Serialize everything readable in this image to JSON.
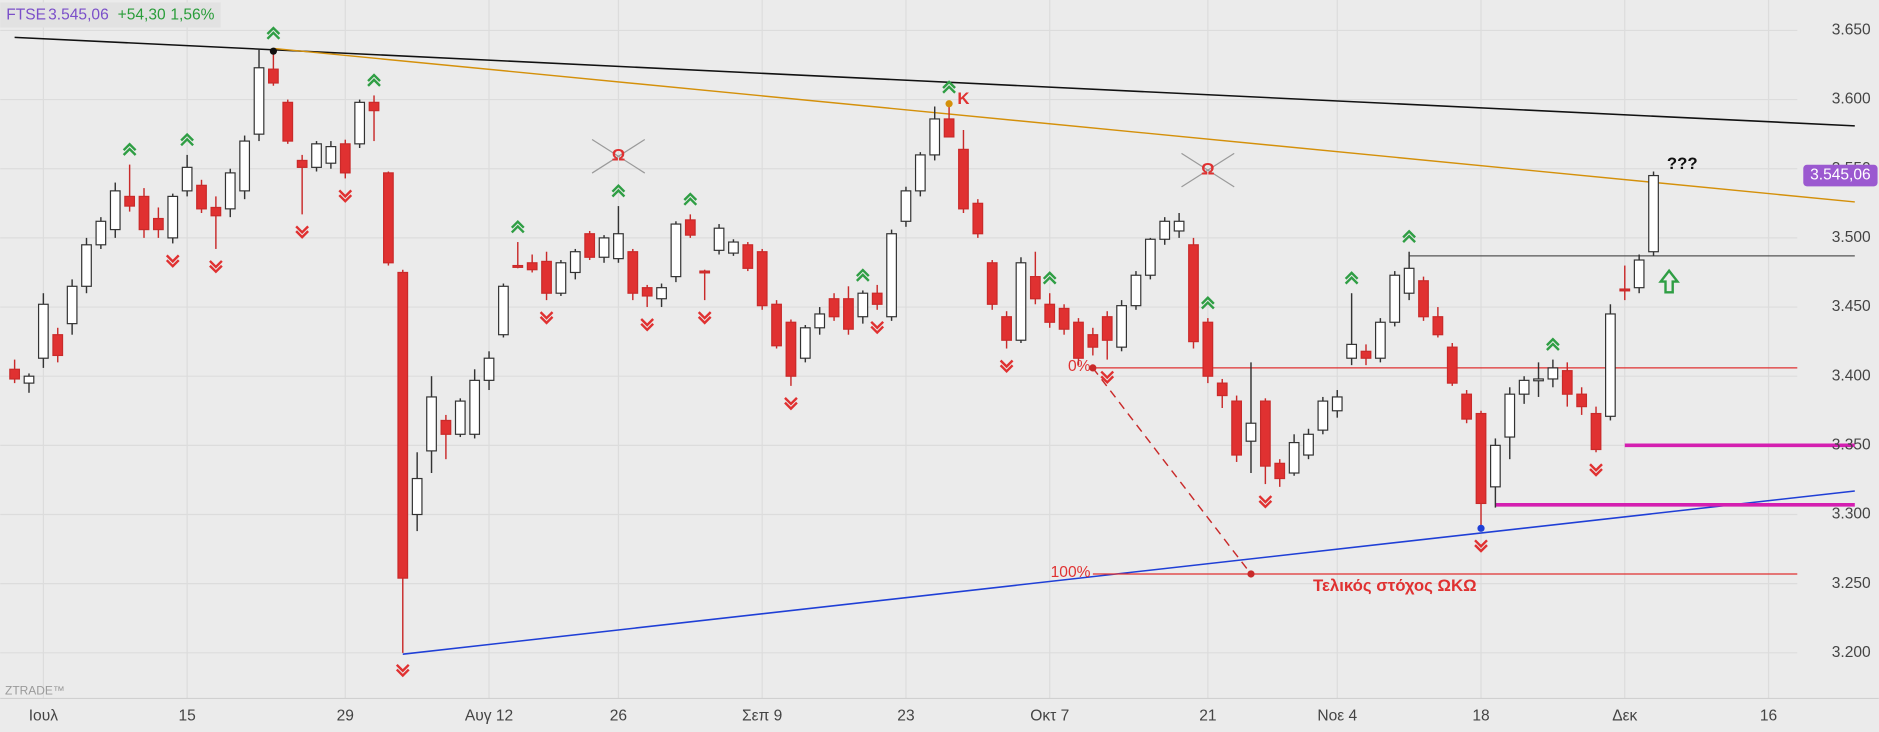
{
  "chart_data": {
    "type": "candlestick",
    "header": {
      "symbol": "FTSE",
      "price": "3.545,06",
      "change": "+54,30",
      "change_pct": "1,56%"
    },
    "watermark": "ZTRADE™",
    "ylim": [
      3167,
      3672
    ],
    "yticks": [
      {
        "value": 3200,
        "label": "3.200"
      },
      {
        "value": 3250,
        "label": "3.250"
      },
      {
        "value": 3300,
        "label": "3.300"
      },
      {
        "value": 3350,
        "label": "3.350"
      },
      {
        "value": 3400,
        "label": "3.400"
      },
      {
        "value": 3450,
        "label": "3.450"
      },
      {
        "value": 3500,
        "label": "3.500"
      },
      {
        "value": 3550,
        "label": "3.550"
      },
      {
        "value": 3600,
        "label": "3.600"
      },
      {
        "value": 3650,
        "label": "3.650"
      }
    ],
    "grid": true,
    "up_color": "#ffffff",
    "down_color": "#e03131",
    "categories": [
      null,
      null,
      "Ιουλ",
      null,
      null,
      null,
      null,
      null,
      null,
      null,
      null,
      null,
      "15",
      null,
      null,
      null,
      null,
      null,
      null,
      null,
      null,
      null,
      null,
      "29",
      null,
      null,
      null,
      null,
      null,
      null,
      null,
      null,
      null,
      "Αυγ 12",
      null,
      null,
      null,
      null,
      null,
      null,
      null,
      null,
      "26",
      null,
      null,
      null,
      null,
      null,
      null,
      null,
      null,
      null,
      "Σεπ 9",
      null,
      null,
      null,
      null,
      null,
      null,
      null,
      null,
      null,
      "23",
      null,
      null,
      null,
      null,
      null,
      null,
      null,
      null,
      null,
      "Οκτ 7",
      null,
      null,
      null,
      null,
      null,
      null,
      null,
      null,
      null,
      null,
      "21",
      null,
      null,
      null,
      null,
      null,
      null,
      null,
      null,
      "Νοε 4",
      null,
      null,
      null,
      null,
      null,
      null,
      null,
      null,
      null,
      "18",
      null,
      null,
      null,
      null,
      null,
      null,
      null,
      null,
      null,
      "Δεκ",
      null,
      null,
      null,
      null,
      null,
      null,
      null,
      null,
      null,
      "16",
      null,
      null,
      null,
      null,
      null
    ],
    "open": [
      3405,
      3395,
      3413,
      3430,
      3438,
      3465,
      3495,
      3506,
      3530,
      3530,
      3514,
      3500,
      3534,
      3538,
      3522,
      3521,
      3534,
      3575,
      3622,
      3598,
      3556,
      3551,
      3554,
      3568,
      3568,
      3598,
      3547,
      3475,
      3300,
      3346,
      3368,
      3358,
      3358,
      3397,
      3430,
      3480,
      3482,
      3483,
      3460,
      3475,
      3503,
      3486,
      3485,
      3490,
      3464,
      3456,
      3472,
      3513,
      3476,
      3491,
      3489,
      3495,
      3490,
      3452,
      3439,
      3413,
      3435,
      3456,
      3456,
      3443,
      3460,
      3443,
      3512,
      3534,
      3560,
      3586,
      3564,
      3525,
      3482,
      3443,
      3426,
      3472,
      3452,
      3449,
      3439,
      3430,
      3443,
      3421,
      3451,
      3473,
      3499,
      3505,
      3495,
      3439,
      3395,
      3382,
      3353,
      3382,
      3337,
      3330,
      3343,
      3361,
      3375,
      3413,
      3418,
      3413,
      3439,
      3460,
      3469,
      3443,
      3421,
      3387,
      3373,
      3320,
      3356,
      3387,
      3397,
      3398,
      3404,
      3387,
      3373,
      3371,
      3463,
      3464,
      3490,
      null,
      null,
      null,
      null,
      null,
      null,
      null,
      null,
      null,
      null,
      null,
      null,
      null
    ],
    "high": [
      3412,
      3402,
      3460,
      3435,
      3470,
      3500,
      3515,
      3540,
      3553,
      3536,
      3522,
      3532,
      3560,
      3542,
      3530,
      3550,
      3574,
      3636,
      3637,
      3600,
      3560,
      3570,
      3570,
      3571,
      3600,
      3603,
      3548,
      3477,
      3345,
      3400,
      3372,
      3384,
      3405,
      3418,
      3467,
      3497,
      3488,
      3490,
      3484,
      3492,
      3505,
      3502,
      3523,
      3492,
      3466,
      3467,
      3512,
      3517,
      3477,
      3510,
      3499,
      3497,
      3492,
      3455,
      3441,
      3437,
      3450,
      3460,
      3465,
      3462,
      3466,
      3506,
      3537,
      3562,
      3595,
      3598,
      3578,
      3528,
      3484,
      3447,
      3486,
      3490,
      3460,
      3452,
      3442,
      3435,
      3447,
      3455,
      3476,
      3500,
      3515,
      3518,
      3500,
      3442,
      3398,
      3386,
      3410,
      3384,
      3340,
      3358,
      3362,
      3385,
      3390,
      3460,
      3423,
      3442,
      3476,
      3490,
      3472,
      3450,
      3424,
      3390,
      3375,
      3355,
      3392,
      3400,
      3410,
      3412,
      3410,
      3392,
      3378,
      3452,
      3480,
      3488,
      3548,
      null,
      null,
      null,
      null,
      null,
      null,
      null,
      null,
      null,
      null,
      null,
      null,
      null
    ],
    "low": [
      3395,
      3388,
      3406,
      3410,
      3430,
      3460,
      3492,
      3500,
      3519,
      3500,
      3500,
      3496,
      3530,
      3518,
      3492,
      3515,
      3528,
      3570,
      3610,
      3568,
      3517,
      3548,
      3550,
      3543,
      3565,
      3570,
      3480,
      3200,
      3288,
      3330,
      3340,
      3356,
      3355,
      3390,
      3428,
      3478,
      3475,
      3455,
      3458,
      3470,
      3484,
      3482,
      3482,
      3455,
      3450,
      3450,
      3468,
      3500,
      3455,
      3488,
      3487,
      3476,
      3448,
      3420,
      3393,
      3410,
      3430,
      3440,
      3430,
      3438,
      3448,
      3440,
      3508,
      3530,
      3556,
      3575,
      3518,
      3500,
      3448,
      3420,
      3424,
      3452,
      3435,
      3430,
      3408,
      3415,
      3412,
      3418,
      3448,
      3470,
      3495,
      3500,
      3420,
      3395,
      3377,
      3338,
      3330,
      3322,
      3320,
      3328,
      3340,
      3358,
      3370,
      3408,
      3408,
      3410,
      3436,
      3455,
      3440,
      3428,
      3393,
      3366,
      3290,
      3305,
      3340,
      3380,
      3385,
      3392,
      3378,
      3372,
      3345,
      3368,
      3455,
      3460,
      3487,
      null,
      null,
      null,
      null,
      null,
      null,
      null,
      null,
      null,
      null,
      null,
      null,
      null
    ],
    "close": [
      3398,
      3400,
      3452,
      3415,
      3465,
      3495,
      3512,
      3534,
      3523,
      3506,
      3506,
      3530,
      3551,
      3521,
      3516,
      3547,
      3570,
      3623,
      3612,
      3570,
      3551,
      3568,
      3566,
      3547,
      3598,
      3592,
      3482,
      3254,
      3326,
      3385,
      3358,
      3382,
      3397,
      3413,
      3465,
      3479,
      3477,
      3460,
      3482,
      3490,
      3486,
      3500,
      3503,
      3460,
      3458,
      3464,
      3510,
      3502,
      3475,
      3507,
      3497,
      3478,
      3451,
      3422,
      3400,
      3435,
      3445,
      3443,
      3434,
      3460,
      3452,
      3503,
      3534,
      3560,
      3586,
      3573,
      3521,
      3503,
      3452,
      3426,
      3482,
      3456,
      3439,
      3434,
      3413,
      3421,
      3426,
      3451,
      3473,
      3499,
      3512,
      3512,
      3425,
      3400,
      3386,
      3343,
      3366,
      3335,
      3326,
      3352,
      3358,
      3382,
      3385,
      3423,
      3413,
      3439,
      3473,
      3478,
      3443,
      3430,
      3395,
      3369,
      3308,
      3350,
      3387,
      3397,
      3398,
      3406,
      3387,
      3378,
      3347,
      3445,
      3462,
      3484,
      3545.06,
      null,
      null,
      null,
      null,
      null,
      null,
      null,
      null,
      null,
      null,
      null,
      null,
      null
    ],
    "up_signals": [
      8,
      12,
      18,
      25,
      35,
      42,
      47,
      59,
      65,
      72,
      83,
      93,
      97,
      107
    ],
    "down_signals": [
      11,
      14,
      20,
      23,
      27,
      37,
      44,
      48,
      54,
      60,
      69,
      76,
      87,
      102,
      110
    ],
    "lines": [
      {
        "color": "#111111",
        "width": 1.3,
        "x": [
          0,
          128
        ],
        "y": [
          3645,
          3581
        ]
      },
      {
        "color": "#d4900a",
        "width": 1.2,
        "x": [
          18,
          128
        ],
        "y": [
          3637,
          3526
        ]
      },
      {
        "color": "#1f3fd6",
        "width": 1.3,
        "x": [
          27,
          128
        ],
        "y": [
          3199,
          3317
        ]
      },
      {
        "color": "#e03131",
        "width": 1,
        "x": [
          75,
          124
        ],
        "y": [
          3406,
          3406
        ],
        "label": "0%"
      },
      {
        "color": "#e03131",
        "width": 1,
        "x": [
          75,
          124
        ],
        "y": [
          3257,
          3257
        ],
        "label": "100%"
      },
      {
        "color": "#555555",
        "width": 1,
        "x": [
          97,
          128
        ],
        "y": [
          3487,
          3487
        ]
      },
      {
        "color": "#d41fb0",
        "width": 3,
        "x": [
          112,
          128
        ],
        "y": [
          3350,
          3350
        ]
      },
      {
        "color": "#d41fb0",
        "width": 3,
        "x": [
          103,
          128
        ],
        "y": [
          3307,
          3307
        ]
      },
      {
        "color": "#c92a2a",
        "width": 1.2,
        "x": [
          75,
          86
        ],
        "y": [
          3406,
          3257
        ],
        "dashed": true
      }
    ],
    "dots": [
      {
        "color": "#111111",
        "x": 18,
        "y": 3635
      },
      {
        "color": "#d4900a",
        "x": 65,
        "y": 3597
      },
      {
        "color": "#1f3fd6",
        "x": 102,
        "y": 3290
      },
      {
        "color": "#c92a2a",
        "x": 75,
        "y": 3406
      },
      {
        "color": "#c92a2a",
        "x": 86,
        "y": 3257
      }
    ],
    "annotations": [
      {
        "text": "K",
        "x": 66,
        "y": 3600,
        "color": "#e03131"
      },
      {
        "text": "Ω",
        "x": 42,
        "y": 3559,
        "color": "#e03131",
        "cross": true
      },
      {
        "text": "Ω",
        "x": 83,
        "y": 3549,
        "color": "#e03131",
        "cross": true
      },
      {
        "text": "???",
        "x": 116,
        "y": 3553,
        "color": "#111111"
      },
      {
        "text": "Τελικός στόχος ΩΚΩ",
        "x": 96,
        "y": 3248,
        "color": "#e03131"
      }
    ]
  }
}
